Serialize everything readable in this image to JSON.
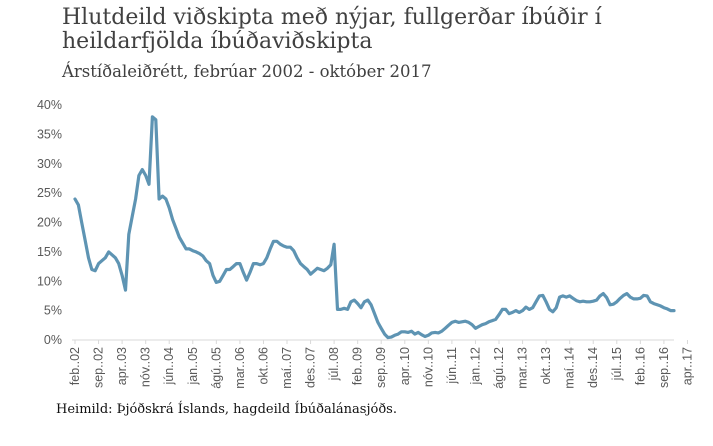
{
  "header": {
    "title_line1": "Hlutdeild viðskipta með nýjar, fullgerðar íbúðir í",
    "title_line2": "heildarfjölda íbúðaviðskipta",
    "subtitle": "Árstíðaleiðrétt, febrúar 2002 - október 2017"
  },
  "footer": {
    "source": "Heimild: Þjóðskrá Íslands, hagdeild Íbúðalánasjóðs."
  },
  "colors": {
    "line": "#5e94b3",
    "axis": "#d9d9d9",
    "text": "#595959"
  },
  "chart_data": {
    "type": "line",
    "title": "Hlutdeild viðskipta með nýjar, fullgerðar íbúðir í heildarfjölda íbúðaviðskipta",
    "subtitle": "Árstíðaleiðrétt, febrúar 2002 - október 2017",
    "ylim": [
      0,
      40
    ],
    "yticks": [
      0,
      5,
      10,
      15,
      20,
      25,
      30,
      35,
      40
    ],
    "ytick_labels": [
      "0%",
      "5%",
      "10%",
      "15%",
      "20%",
      "25%",
      "30%",
      "35%",
      "40%"
    ],
    "grid": false,
    "xtick_labels": [
      "feb..02",
      "sep..02",
      "apr..03",
      "nóv..03",
      "jún..04",
      "jan..05",
      "ágú..05",
      "mar..06",
      "okt..06",
      "maí..07",
      "des..07",
      "júl..08",
      "feb..09",
      "sep..09",
      "apr..10",
      "nóv..10",
      "jún..11",
      "jan..12",
      "ágú..12",
      "mar..13",
      "okt..13",
      "maí..14",
      "des..14",
      "júl..15",
      "feb..16",
      "sep..16",
      "apr..17"
    ],
    "series": [
      {
        "values": [
          24,
          23,
          20,
          17,
          14,
          12,
          11.8,
          13,
          13.5,
          14,
          15,
          14.5,
          14,
          13,
          11,
          8.5,
          18,
          21,
          24,
          28,
          29,
          28,
          26.5,
          38,
          37.5,
          24,
          24.5,
          24,
          22.5,
          20.5,
          19,
          17.5,
          16.5,
          15.5,
          15.5,
          15.2,
          15,
          14.7,
          14.3,
          13.5,
          13,
          11,
          9.8,
          10,
          11,
          12,
          12,
          12.5,
          13,
          13,
          11.5,
          10.2,
          11.5,
          13,
          13,
          12.8,
          13,
          14,
          15.5,
          16.8,
          16.8,
          16.3,
          16,
          15.8,
          15.8,
          15.2,
          14,
          13,
          12.5,
          12,
          11.2,
          11.7,
          12.2,
          12,
          11.8,
          12.2,
          12.8,
          16.3,
          5.2,
          5.2,
          5.4,
          5.2,
          6.5,
          6.8,
          6.2,
          5.5,
          6.5,
          6.8,
          6,
          4.5,
          3,
          2,
          1,
          0.4,
          0.5,
          0.8,
          1,
          1.4,
          1.4,
          1.3,
          1.5,
          1,
          1.3,
          0.9,
          0.6,
          0.8,
          1.2,
          1.3,
          1.2,
          1.5,
          2,
          2.5,
          3,
          3.2,
          3,
          3.1,
          3.2,
          3,
          2.6,
          2,
          2.3,
          2.6,
          2.8,
          3.1,
          3.3,
          3.5,
          4.3,
          5.2,
          5.2,
          4.5,
          4.7,
          5,
          4.7,
          5,
          5.6,
          5.2,
          5.5,
          6.5,
          7.5,
          7.6,
          6.5,
          5.2,
          4.8,
          5.5,
          7.3,
          7.5,
          7.3,
          7.5,
          7.1,
          6.7,
          6.5,
          6.6,
          6.5,
          6.5,
          6.6,
          6.8,
          7.5,
          7.9,
          7.2,
          6,
          6.1,
          6.5,
          7.1,
          7.6,
          7.9,
          7.3,
          7,
          7,
          7.1,
          7.6,
          7.5,
          6.5,
          6.2,
          6,
          5.8,
          5.5,
          5.3,
          5,
          5
        ]
      }
    ]
  }
}
